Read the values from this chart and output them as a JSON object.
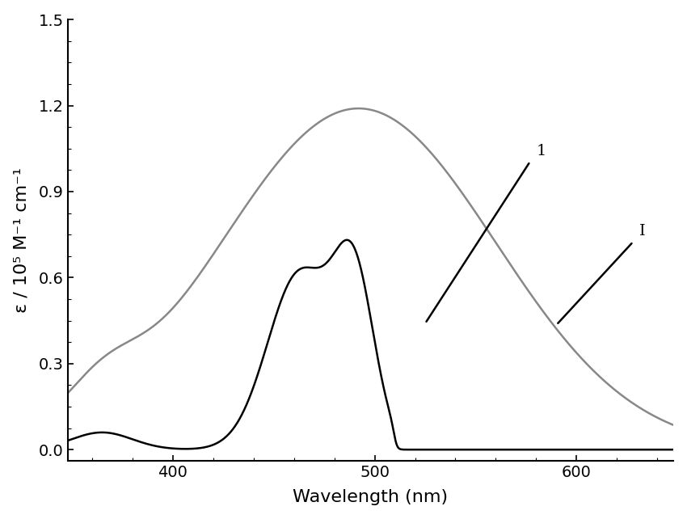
{
  "title": "",
  "xlabel": "Wavelength (nm)",
  "ylabel": "ε / 10⁵ M⁻¹ cm⁻¹",
  "xlim": [
    348,
    648
  ],
  "ylim": [
    -0.04,
    1.5
  ],
  "xticks": [
    400,
    500,
    600
  ],
  "yticks": [
    0.0,
    0.3,
    0.6,
    0.9,
    1.2,
    1.5
  ],
  "background_color": "#ffffff",
  "curve1_color": "#000000",
  "curve2_color": "#888888",
  "label1": "1",
  "label2": "I",
  "figsize": [
    8.5,
    6.42
  ],
  "dpi": 100
}
